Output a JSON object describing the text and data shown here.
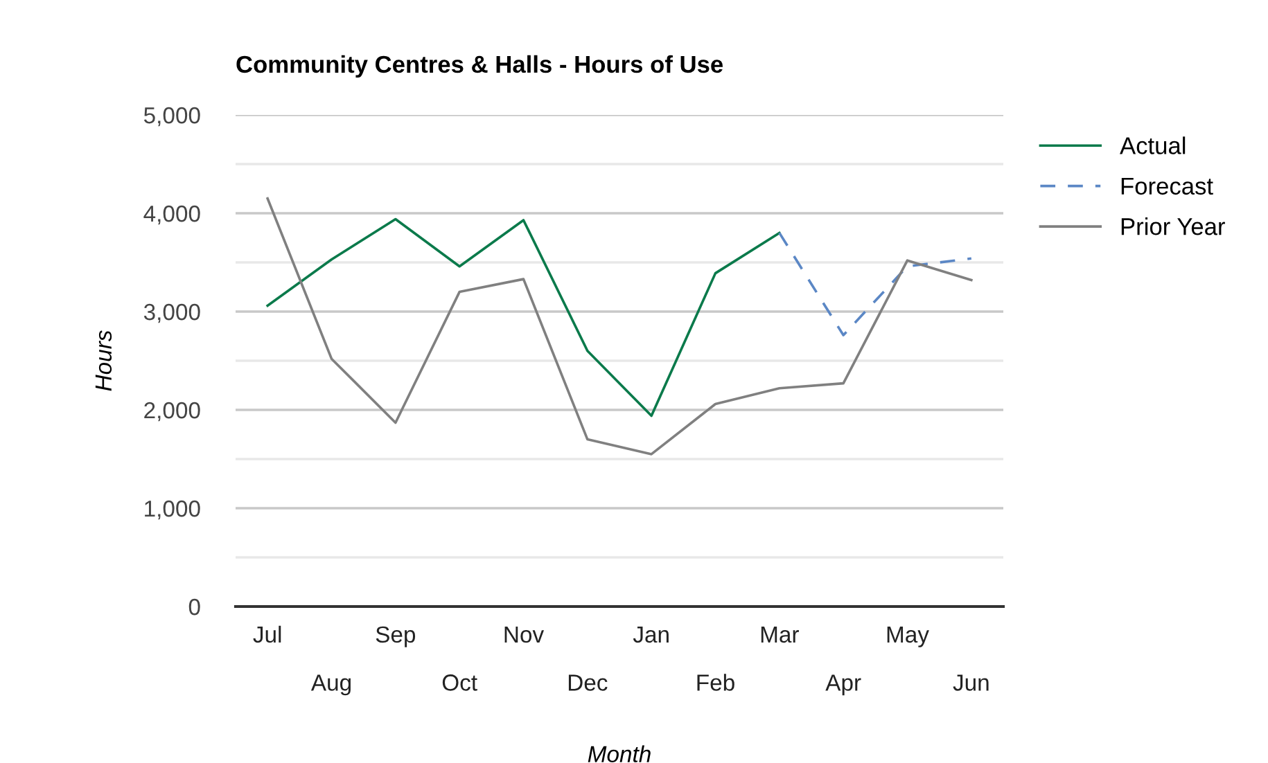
{
  "chart_data": {
    "type": "line",
    "title": "Community Centres & Halls - Hours of Use",
    "xlabel": "Month",
    "ylabel": "Hours",
    "categories": [
      "Jul",
      "Aug",
      "Sep",
      "Oct",
      "Nov",
      "Dec",
      "Jan",
      "Feb",
      "Mar",
      "Apr",
      "May",
      "Jun"
    ],
    "series": [
      {
        "name": "Actual",
        "color": "#0b7a4b",
        "line_style": "solid",
        "values": [
          3060,
          3530,
          3940,
          3460,
          3930,
          2600,
          1940,
          3390,
          3800,
          null,
          null,
          null
        ]
      },
      {
        "name": "Forecast",
        "color": "#5b87c5",
        "line_style": "dashed",
        "values": [
          null,
          null,
          null,
          null,
          null,
          null,
          null,
          null,
          3800,
          2760,
          3460,
          3540
        ]
      },
      {
        "name": "Prior Year",
        "color": "#808080",
        "line_style": "solid",
        "values": [
          4150,
          2520,
          1870,
          3200,
          3330,
          1700,
          1550,
          2060,
          2220,
          2270,
          3520,
          3320
        ]
      }
    ],
    "ylim": [
      0,
      5000
    ],
    "yticks": [
      0,
      {
        "value": 500,
        "label": null
      },
      {
        "value": 1000,
        "label": "1,000"
      },
      {
        "value": 1500,
        "label": null
      },
      {
        "value": 2000,
        "label": "2,000"
      },
      {
        "value": 2500,
        "label": null
      },
      {
        "value": 3000,
        "label": "3,000"
      },
      {
        "value": 3500,
        "label": null
      },
      {
        "value": 4000,
        "label": "4,000"
      },
      {
        "value": 4500,
        "label": null
      },
      {
        "value": 5000,
        "label": "5,000"
      }
    ],
    "grid": "y",
    "legend": "top right",
    "marker": "none"
  }
}
